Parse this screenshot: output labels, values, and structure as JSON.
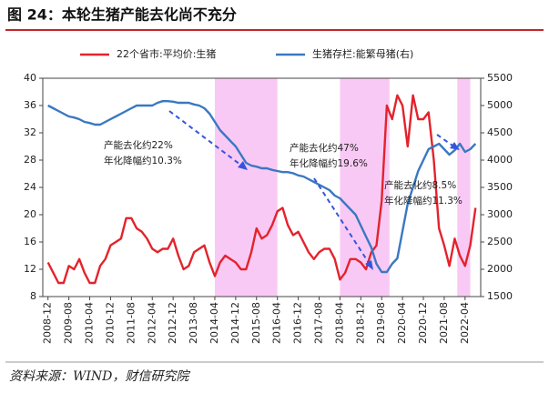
{
  "chart_data": {
    "type": "line",
    "title": "图 24：本轮生猪产能去化尚不充分",
    "source": "资料来源：WIND，财信研究院",
    "x": [
      "2008-12",
      "2009-02",
      "2009-04",
      "2009-06",
      "2009-08",
      "2009-10",
      "2009-12",
      "2010-02",
      "2010-04",
      "2010-06",
      "2010-08",
      "2010-10",
      "2010-12",
      "2011-02",
      "2011-04",
      "2011-06",
      "2011-08",
      "2011-10",
      "2011-12",
      "2012-02",
      "2012-04",
      "2012-06",
      "2012-08",
      "2012-10",
      "2012-12",
      "2013-02",
      "2013-04",
      "2013-06",
      "2013-08",
      "2013-10",
      "2013-12",
      "2014-02",
      "2014-04",
      "2014-06",
      "2014-08",
      "2014-10",
      "2014-12",
      "2015-02",
      "2015-04",
      "2015-06",
      "2015-08",
      "2015-10",
      "2015-12",
      "2016-02",
      "2016-04",
      "2016-06",
      "2016-08",
      "2016-10",
      "2016-12",
      "2017-02",
      "2017-04",
      "2017-06",
      "2017-08",
      "2017-10",
      "2017-12",
      "2018-02",
      "2018-04",
      "2018-06",
      "2018-08",
      "2018-10",
      "2018-12",
      "2019-02",
      "2019-04",
      "2019-06",
      "2019-08",
      "2019-10",
      "2019-12",
      "2020-02",
      "2020-04",
      "2020-06",
      "2020-08",
      "2020-10",
      "2020-12",
      "2021-02",
      "2021-04",
      "2021-06",
      "2021-08",
      "2021-10",
      "2021-12",
      "2022-02",
      "2022-04",
      "2022-06",
      "2022-08"
    ],
    "xlim": [
      "2008-10",
      "2022-10"
    ],
    "xticks": [
      "2008-12",
      "2009-08",
      "2010-04",
      "2010-12",
      "2011-08",
      "2012-04",
      "2012-12",
      "2013-08",
      "2014-04",
      "2014-12",
      "2015-08",
      "2016-04",
      "2016-12",
      "2017-08",
      "2018-04",
      "2018-12",
      "2019-08",
      "2020-04",
      "2020-12",
      "2021-08",
      "2022-04"
    ],
    "ylim": [
      8,
      40
    ],
    "yticks": [
      8,
      12,
      16,
      20,
      24,
      28,
      32,
      36,
      40
    ],
    "y2lim": [
      1500,
      5500
    ],
    "y2ticks": [
      1500,
      2000,
      2500,
      3000,
      3500,
      4000,
      4500,
      5000,
      5500
    ],
    "series": [
      {
        "name": "22个省市:平均价:生猪",
        "color": "#e3232c",
        "axis": "y",
        "values": [
          13,
          11.5,
          10,
          10,
          12.5,
          12,
          13.5,
          11.5,
          10,
          10,
          12.5,
          13.5,
          15.5,
          16,
          16.5,
          19.5,
          19.5,
          18,
          17.5,
          16.5,
          15,
          14.5,
          15,
          15,
          16.5,
          14,
          12,
          12.5,
          14.5,
          15,
          15.5,
          13,
          11,
          13,
          14,
          13.5,
          13,
          12,
          12,
          14.5,
          18,
          16.5,
          17,
          18.5,
          20.5,
          21,
          18.5,
          17,
          17.5,
          16,
          14.5,
          13.5,
          14.5,
          15,
          15,
          13.5,
          10.5,
          11.5,
          13.5,
          13.5,
          13,
          12,
          14.5,
          15.5,
          22,
          36,
          34,
          37.5,
          36,
          30,
          37.5,
          34,
          34,
          35,
          28,
          18,
          15.5,
          12.5,
          16.5,
          14,
          12.5,
          15.5,
          21
        ]
      },
      {
        "name": "生猪存栏:能繁母猪(右)",
        "color": "#3a78c2",
        "axis": "y2",
        "values": [
          5000,
          4950,
          4900,
          4850,
          4800,
          4780,
          4750,
          4700,
          4680,
          4650,
          4650,
          4700,
          4750,
          4800,
          4850,
          4900,
          4950,
          5000,
          5000,
          5000,
          5000,
          5050,
          5080,
          5080,
          5070,
          5050,
          5050,
          5050,
          5020,
          5000,
          4950,
          4850,
          4700,
          4550,
          4450,
          4350,
          4250,
          4100,
          3950,
          3900,
          3880,
          3850,
          3850,
          3820,
          3800,
          3780,
          3780,
          3760,
          3720,
          3700,
          3650,
          3600,
          3550,
          3500,
          3450,
          3350,
          3300,
          3200,
          3100,
          3000,
          2800,
          2600,
          2400,
          2100,
          1950,
          1950,
          2100,
          2200,
          2700,
          3200,
          3500,
          3800,
          4000,
          4200,
          4250,
          4300,
          4200,
          4100,
          4180,
          4300,
          4150,
          4200,
          4300
        ]
      }
    ],
    "shaded_regions": [
      {
        "start": "2014-04",
        "end": "2016-04"
      },
      {
        "start": "2018-04",
        "end": "2019-11"
      },
      {
        "start": "2022-01",
        "end": "2022-06"
      }
    ],
    "shade_color": "#f9c9f5",
    "annotations": [
      {
        "lines": [
          "产能去化约22%",
          "年化降幅约10.3%"
        ]
      },
      {
        "lines": [
          "产能去化约47%",
          "年化降幅约19.6%"
        ]
      },
      {
        "lines": [
          "产能去化约8.5%",
          "年化降幅约11.3%"
        ]
      }
    ]
  }
}
